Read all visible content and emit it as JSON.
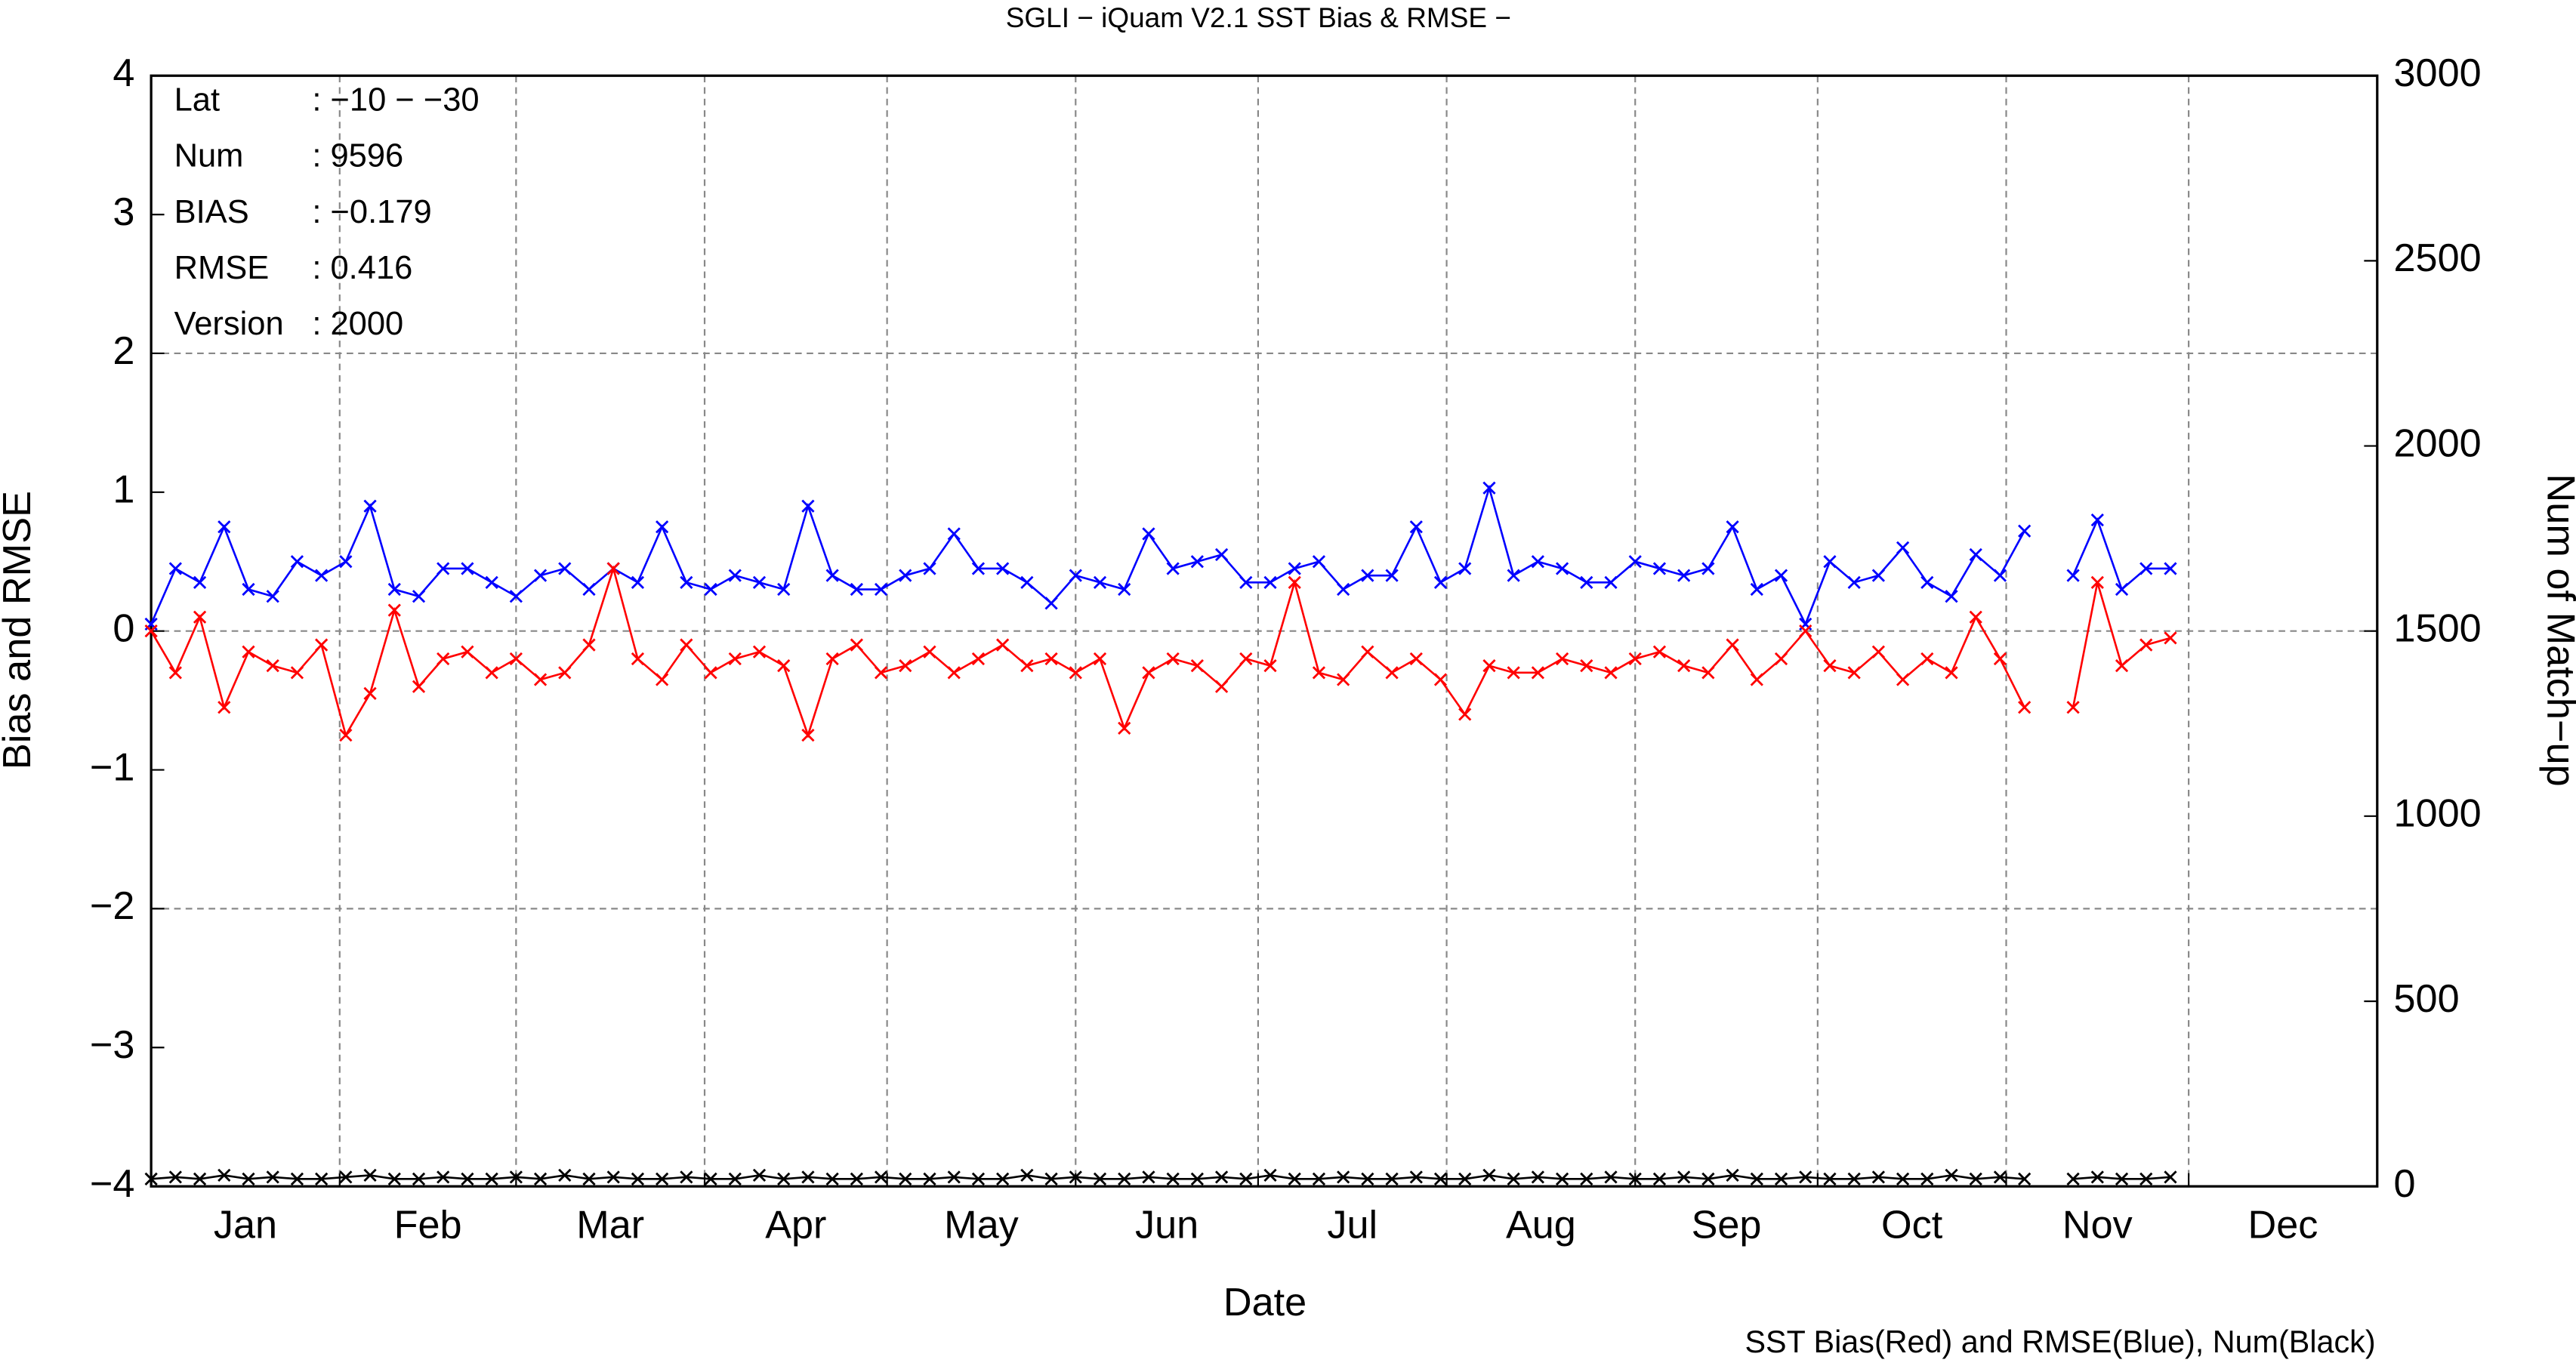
{
  "chart_data": {
    "type": "line",
    "title": "SGLI − iQuam V2.1 SST Bias & RMSE  −",
    "xlabel": "Date",
    "ylabel": "Bias and RMSE",
    "y2label": "Num of Match−up",
    "footer": "SST Bias(Red) and RMSE(Blue), Num(Black)",
    "info": [
      [
        "Lat",
        ": −10 − −30"
      ],
      [
        "Num",
        ": 9596"
      ],
      [
        "BIAS",
        ": −0.179"
      ],
      [
        "RMSE",
        ": 0.416"
      ],
      [
        "Version",
        ": 2000"
      ]
    ],
    "months": [
      "Jan",
      "Feb",
      "Mar",
      "Apr",
      "May",
      "Jun",
      "Jul",
      "Aug",
      "Sep",
      "Oct",
      "Nov",
      "Dec"
    ],
    "xlim": [
      1,
      367
    ],
    "xticks": [
      32,
      61,
      92,
      122,
      153,
      183,
      214,
      245,
      275,
      306,
      336
    ],
    "ylim": [
      -4,
      4
    ],
    "yticks": [
      {
        "value": -4,
        "label": "−4"
      },
      {
        "value": -3,
        "label": "−3"
      },
      {
        "value": -2,
        "label": "−2"
      },
      {
        "value": -1,
        "label": "−1"
      },
      0,
      1,
      2,
      3,
      4
    ],
    "ygrid": [
      -2,
      0,
      2
    ],
    "y2lim": [
      0,
      3000
    ],
    "y2ticks": [
      0,
      500,
      1000,
      1500,
      2000,
      2500,
      3000
    ],
    "grid": true,
    "x": [
      1,
      5,
      9,
      13,
      17,
      21,
      25,
      29,
      33,
      37,
      41,
      45,
      49,
      53,
      57,
      61,
      65,
      69,
      73,
      77,
      81,
      85,
      89,
      93,
      97,
      101,
      105,
      109,
      113,
      117,
      121,
      125,
      129,
      133,
      137,
      141,
      145,
      149,
      153,
      157,
      161,
      165,
      169,
      173,
      177,
      181,
      185,
      189,
      193,
      197,
      201,
      205,
      209,
      213,
      217,
      221,
      225,
      229,
      233,
      237,
      241,
      245,
      249,
      253,
      257,
      261,
      265,
      269,
      273,
      277,
      281,
      285,
      289,
      293,
      297,
      301,
      305,
      309,
      313,
      317,
      321,
      325,
      329,
      333
    ],
    "series": [
      {
        "name": "RMSE",
        "color": "#0000ff",
        "values": [
          0.05,
          0.45,
          0.35,
          0.75,
          0.3,
          0.25,
          0.5,
          0.4,
          0.5,
          0.9,
          0.3,
          0.25,
          0.45,
          0.45,
          0.35,
          0.25,
          0.4,
          0.45,
          0.3,
          0.45,
          0.35,
          0.75,
          0.35,
          0.3,
          0.4,
          0.35,
          0.3,
          0.9,
          0.4,
          0.3,
          0.3,
          0.4,
          0.45,
          0.7,
          0.45,
          0.45,
          0.35,
          0.2,
          0.4,
          0.35,
          0.3,
          0.7,
          0.45,
          0.5,
          0.55,
          0.35,
          0.35,
          0.45,
          0.5,
          0.3,
          0.4,
          0.4,
          0.75,
          0.35,
          0.45,
          1.03,
          0.4,
          0.5,
          0.45,
          0.35,
          0.35,
          0.5,
          0.45,
          0.4,
          0.45,
          0.75,
          0.3,
          0.4,
          0.05,
          0.5,
          0.35,
          0.4,
          0.6,
          0.35,
          0.25,
          0.55,
          0.4,
          0.72,
          null,
          0.4,
          0.8,
          0.3,
          0.45,
          0.45
        ]
      },
      {
        "name": "Bias",
        "color": "#ff0000",
        "values": [
          0.0,
          -0.3,
          0.1,
          -0.55,
          -0.15,
          -0.25,
          -0.3,
          -0.1,
          -0.75,
          -0.45,
          0.15,
          -0.4,
          -0.2,
          -0.15,
          -0.3,
          -0.2,
          -0.35,
          -0.3,
          -0.1,
          0.45,
          -0.2,
          -0.35,
          -0.1,
          -0.3,
          -0.2,
          -0.15,
          -0.25,
          -0.75,
          -0.2,
          -0.1,
          -0.3,
          -0.25,
          -0.15,
          -0.3,
          -0.2,
          -0.1,
          -0.25,
          -0.2,
          -0.3,
          -0.2,
          -0.7,
          -0.3,
          -0.2,
          -0.25,
          -0.4,
          -0.2,
          -0.25,
          0.35,
          -0.3,
          -0.35,
          -0.15,
          -0.3,
          -0.2,
          -0.35,
          -0.6,
          -0.25,
          -0.3,
          -0.3,
          -0.2,
          -0.25,
          -0.3,
          -0.2,
          -0.15,
          -0.25,
          -0.3,
          -0.1,
          -0.35,
          -0.2,
          0.0,
          -0.25,
          -0.3,
          -0.15,
          -0.35,
          -0.2,
          -0.3,
          0.1,
          -0.2,
          -0.55,
          null,
          -0.55,
          0.35,
          -0.25,
          -0.1,
          -0.05
        ]
      },
      {
        "name": "Num",
        "color": "#000000",
        "axis": "y2",
        "values": [
          20,
          25,
          20,
          30,
          20,
          25,
          20,
          20,
          25,
          30,
          20,
          20,
          25,
          20,
          20,
          25,
          20,
          30,
          20,
          25,
          20,
          20,
          25,
          20,
          20,
          30,
          20,
          25,
          20,
          20,
          25,
          20,
          20,
          25,
          20,
          20,
          30,
          20,
          25,
          20,
          20,
          25,
          20,
          20,
          25,
          20,
          30,
          20,
          20,
          25,
          20,
          20,
          25,
          20,
          20,
          30,
          20,
          25,
          20,
          20,
          25,
          20,
          20,
          25,
          20,
          30,
          20,
          20,
          25,
          20,
          20,
          25,
          20,
          20,
          30,
          20,
          25,
          20,
          null,
          20,
          25,
          20,
          20,
          25
        ]
      }
    ]
  }
}
